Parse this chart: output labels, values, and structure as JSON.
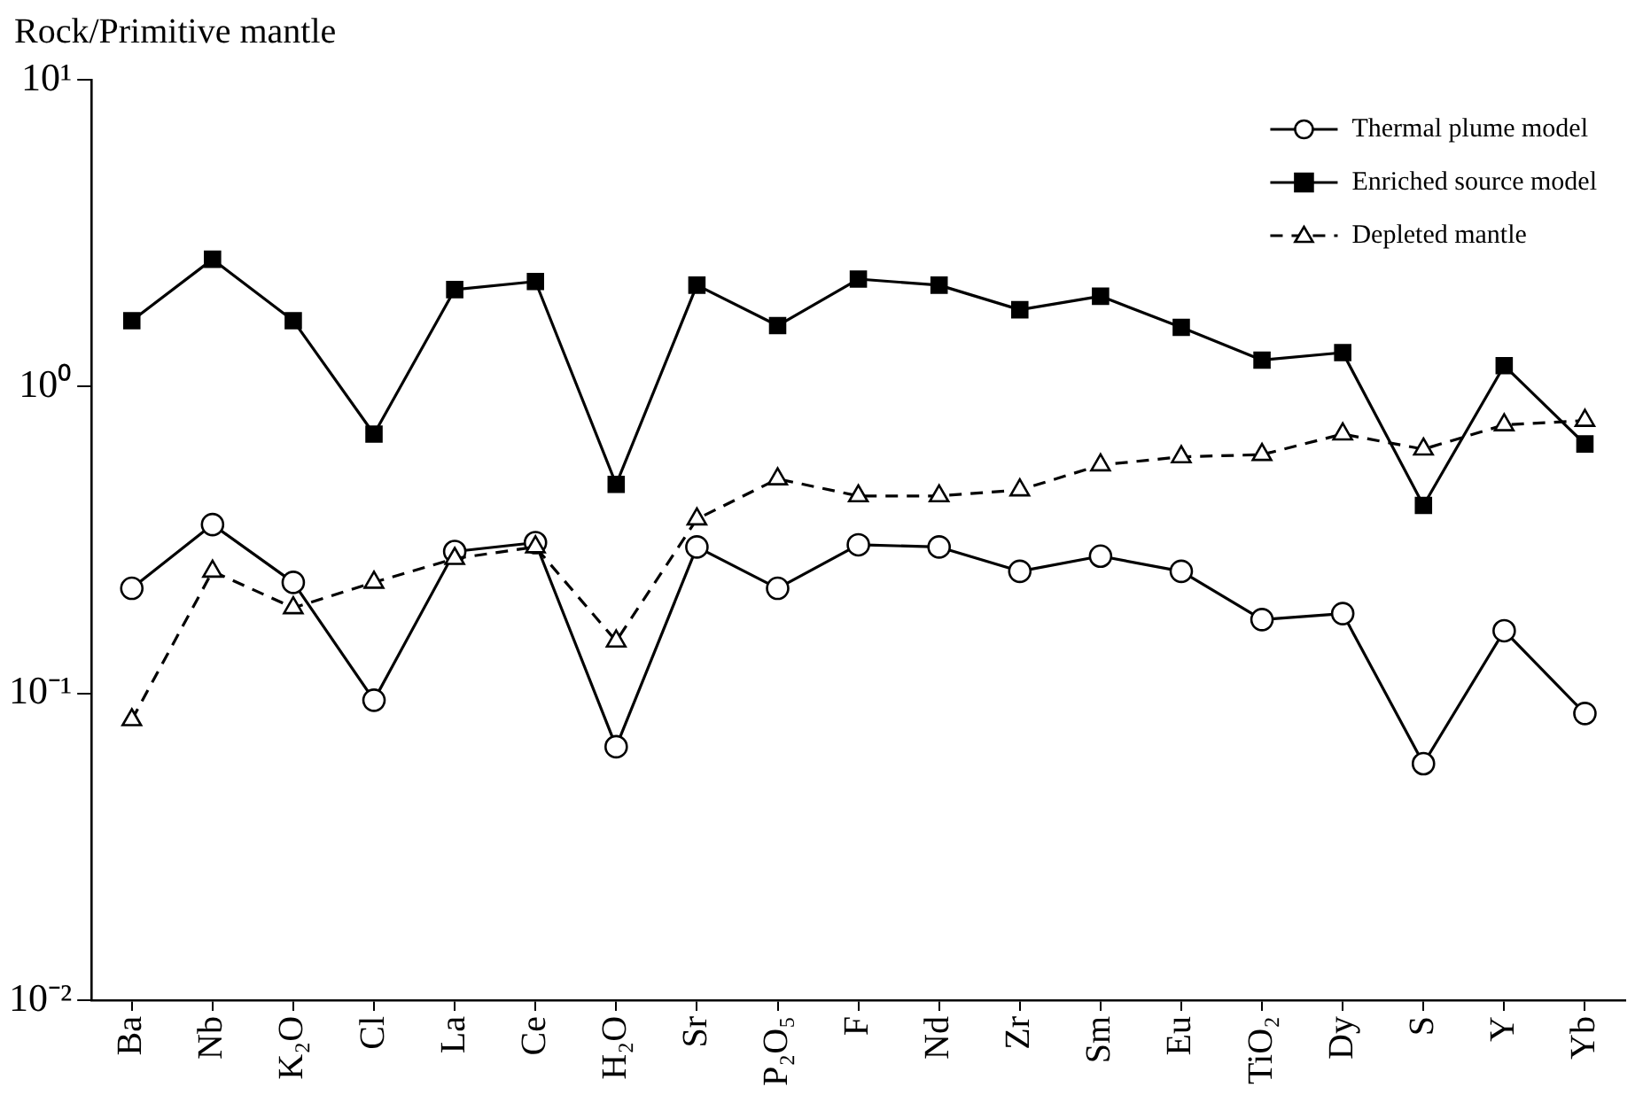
{
  "chart_data": {
    "type": "line",
    "ylabel": "Rock/Primitive mantle",
    "log": true,
    "grid": false,
    "legend": "top right",
    "categories": [
      "Ba",
      "Nb",
      "K₂O",
      "Cl",
      "La",
      "Ce",
      "H₂O",
      "Sr",
      "P₂O₅",
      "F",
      "Nd",
      "Zr",
      "Sm",
      "Eu",
      "TiO₂",
      "Dy",
      "S",
      "Y",
      "Yb"
    ],
    "ylim": [
      0.01,
      10
    ],
    "yticks": [
      {
        "value": 0.01,
        "label": "10⁻²"
      },
      {
        "value": 0.1,
        "label": "10⁻¹"
      },
      {
        "value": 1,
        "label": "10⁰"
      },
      {
        "value": 10,
        "label": "10¹"
      }
    ],
    "series": [
      {
        "name": "Thermal plume model",
        "color": "#000000",
        "marker": "circle",
        "line_style": "solid",
        "values": [
          0.22,
          0.355,
          0.23,
          0.095,
          0.29,
          0.31,
          0.067,
          0.3,
          0.22,
          0.305,
          0.3,
          0.25,
          0.28,
          0.25,
          0.174,
          0.182,
          0.059,
          0.16,
          0.086
        ]
      },
      {
        "name": "Enriched source model",
        "color": "#000000",
        "marker": "square",
        "line_style": "solid",
        "values": [
          1.64,
          2.6,
          1.64,
          0.7,
          2.07,
          2.2,
          0.48,
          2.14,
          1.58,
          2.24,
          2.14,
          1.78,
          1.97,
          1.56,
          1.22,
          1.29,
          0.41,
          1.17,
          0.65
        ]
      },
      {
        "name": "Depleted mantle",
        "color": "#000000",
        "marker": "triangle",
        "line_style": "dashed",
        "values": [
          0.082,
          0.25,
          0.19,
          0.23,
          0.275,
          0.3,
          0.148,
          0.37,
          0.5,
          0.44,
          0.44,
          0.46,
          0.555,
          0.59,
          0.6,
          0.7,
          0.625,
          0.75,
          0.775
        ]
      }
    ]
  }
}
